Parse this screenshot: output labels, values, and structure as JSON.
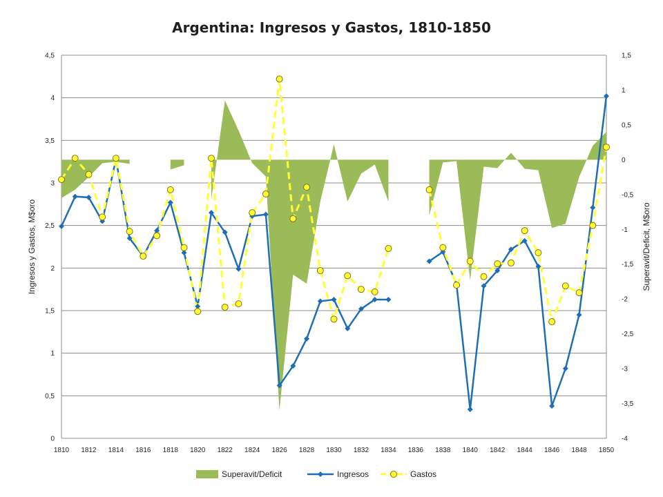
{
  "chart_data": {
    "type": "line",
    "title": "Argentina: Ingresos y Gastos, 1810-1850",
    "x": [
      1810,
      1811,
      1812,
      1813,
      1814,
      1815,
      1816,
      1817,
      1818,
      1819,
      1820,
      1821,
      1822,
      1823,
      1824,
      1825,
      1826,
      1827,
      1828,
      1829,
      1830,
      1831,
      1832,
      1833,
      1834,
      1835,
      1836,
      1837,
      1838,
      1839,
      1840,
      1841,
      1842,
      1843,
      1844,
      1845,
      1846,
      1847,
      1848,
      1849,
      1850
    ],
    "x_ticks": [
      1810,
      1812,
      1814,
      1816,
      1818,
      1820,
      1822,
      1824,
      1826,
      1828,
      1830,
      1832,
      1834,
      1836,
      1838,
      1840,
      1842,
      1844,
      1846,
      1848,
      1850
    ],
    "ylabel": "Ingresos y Gastos, M$oro",
    "y2label": "Superavit/Deficit, M$oro",
    "ylim": [
      0,
      4.5
    ],
    "y2lim": [
      -4,
      1.5
    ],
    "y_ticks": [
      "0",
      "0,5",
      "1",
      "1,5",
      "2",
      "2,5",
      "3",
      "3,5",
      "4",
      "4,5"
    ],
    "y2_ticks": [
      "-4",
      "-3,5",
      "-3",
      "-2,5",
      "-2",
      "-1,5",
      "-1",
      "-0,5",
      "0",
      "0,5",
      "1",
      "1,5"
    ],
    "grid": true,
    "legend_position": "bottom",
    "series": [
      {
        "name": "Superavit/Deficit",
        "kind": "area",
        "axis": "right",
        "color": "#9bbb59",
        "values": [
          -0.55,
          -0.43,
          -0.25,
          -0.05,
          -0.03,
          -0.06,
          null,
          null,
          -0.14,
          -0.08,
          null,
          -0.57,
          0.85,
          0.42,
          -0.05,
          -0.24,
          -3.6,
          -1.65,
          -1.78,
          -0.6,
          0.22,
          -0.6,
          -0.2,
          -0.07,
          -0.6,
          null,
          null,
          -0.8,
          -0.04,
          -0.02,
          -1.73,
          -0.1,
          -0.12,
          0.1,
          -0.13,
          -0.15,
          -0.98,
          -0.92,
          -0.25,
          0.2,
          0.4
        ]
      },
      {
        "name": "Ingresos",
        "kind": "line",
        "axis": "left",
        "color": "#1f6eb5",
        "marker": "diamond",
        "values": [
          2.49,
          2.84,
          2.83,
          2.55,
          3.28,
          2.35,
          2.14,
          2.44,
          2.77,
          2.18,
          1.55,
          2.65,
          2.42,
          1.99,
          2.61,
          2.63,
          0.62,
          0.85,
          1.17,
          1.61,
          1.63,
          1.29,
          1.52,
          1.63,
          1.63,
          null,
          null,
          2.08,
          2.19,
          1.81,
          0.34,
          1.79,
          1.97,
          2.22,
          2.32,
          2.02,
          0.38,
          0.82,
          1.45,
          2.71,
          4.02
        ]
      },
      {
        "name": "Gastos",
        "kind": "line",
        "axis": "left",
        "color": "#ffff33",
        "dash": true,
        "marker": "circle",
        "values": [
          3.04,
          3.29,
          3.1,
          2.6,
          3.29,
          2.43,
          2.14,
          2.38,
          2.92,
          2.24,
          1.49,
          3.29,
          1.54,
          1.58,
          2.65,
          2.87,
          4.22,
          2.58,
          2.95,
          1.97,
          1.4,
          1.91,
          1.75,
          1.72,
          2.23,
          null,
          null,
          2.92,
          2.24,
          1.8,
          2.08,
          1.9,
          2.05,
          2.06,
          2.44,
          2.18,
          1.37,
          1.79,
          1.71,
          2.5,
          3.42
        ]
      }
    ]
  }
}
